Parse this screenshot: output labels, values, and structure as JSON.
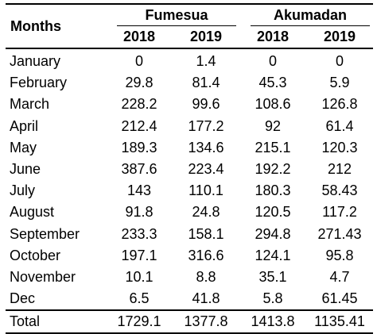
{
  "header": {
    "months_label": "Months",
    "groups": [
      "Fumesua",
      "Akumadan"
    ],
    "years": [
      "2018",
      "2019",
      "2018",
      "2019"
    ]
  },
  "rows": [
    {
      "month": "January",
      "values": [
        "0",
        "1.4",
        "0",
        "0"
      ]
    },
    {
      "month": "February",
      "values": [
        "29.8",
        "81.4",
        "45.3",
        "5.9"
      ]
    },
    {
      "month": "March",
      "values": [
        "228.2",
        "99.6",
        "108.6",
        "126.8"
      ]
    },
    {
      "month": "April",
      "values": [
        "212.4",
        "177.2",
        "92",
        "61.4"
      ]
    },
    {
      "month": "May",
      "values": [
        "189.3",
        "134.6",
        "215.1",
        "120.3"
      ]
    },
    {
      "month": "June",
      "values": [
        "387.6",
        "223.4",
        "192.2",
        "212"
      ]
    },
    {
      "month": "July",
      "values": [
        "143",
        "110.1",
        "180.3",
        "58.43"
      ]
    },
    {
      "month": "August",
      "values": [
        "91.8",
        "24.8",
        "120.5",
        "117.2"
      ]
    },
    {
      "month": "September",
      "values": [
        "233.3",
        "158.1",
        "294.8",
        "271.43"
      ]
    },
    {
      "month": "October",
      "values": [
        "197.1",
        "316.6",
        "124.1",
        "95.8"
      ]
    },
    {
      "month": "November",
      "values": [
        "10.1",
        "8.8",
        "35.1",
        "4.7"
      ]
    },
    {
      "month": "Dec",
      "values": [
        "6.5",
        "41.8",
        "5.8",
        "61.45"
      ]
    },
    {
      "month": "Total",
      "values": [
        "1729.1",
        "1377.8",
        "1413.8",
        "1135.41"
      ]
    }
  ]
}
